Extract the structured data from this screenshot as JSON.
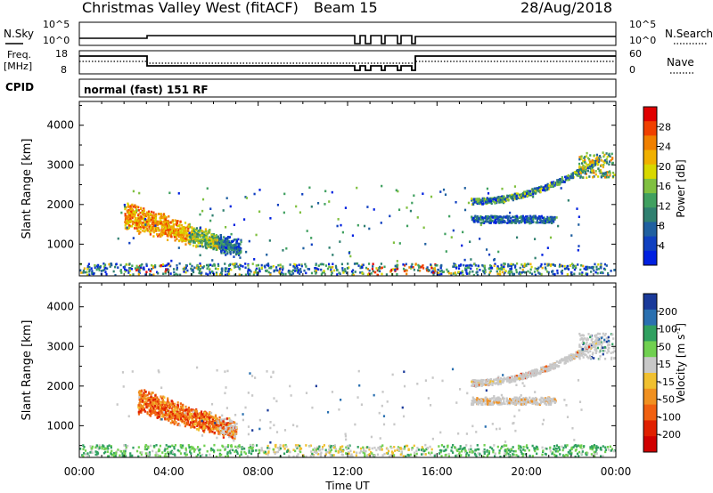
{
  "header": {
    "station": "Christmas Valley West (fitACF)",
    "beam": "Beam 15",
    "date": "28/Aug/2018"
  },
  "strip": {
    "nsky_label": "N.Sky",
    "nsky_ticks": [
      "10^5",
      "10^0"
    ],
    "nsearch_label": "N.Search",
    "nsearch_ticks": [
      "10^5",
      "10^0"
    ],
    "freq_label_1": "Freq.",
    "freq_label_2": "[MHz]",
    "freq_ticks": [
      "18",
      "8"
    ],
    "nave_label": "Nave",
    "nave_ticks": [
      "60",
      "0"
    ],
    "cpid_label": "CPID",
    "cpid_value": "normal (fast) 151 RF"
  },
  "axes": {
    "ylabel": "Slant Range [km]",
    "yticks": [
      "4000",
      "3000",
      "2000",
      "1000"
    ],
    "xlabel": "Time UT",
    "xticks": [
      "00:00",
      "04:00",
      "08:00",
      "12:00",
      "16:00",
      "20:00",
      "00:00"
    ]
  },
  "colorbars": {
    "power": {
      "label": "Power [dB]",
      "ticks": [
        "28",
        "24",
        "20",
        "16",
        "12",
        "8",
        "4"
      ],
      "colors": [
        "#e00000",
        "#f04000",
        "#f08000",
        "#f0b000",
        "#d8d800",
        "#80c040",
        "#40a060",
        "#308070",
        "#2060a0",
        "#1040c0",
        "#0020e0"
      ]
    },
    "velocity": {
      "label_pre": "Velocity [m s",
      "label_sup": "-1",
      "label_post": "]",
      "ticks": [
        "200",
        "100",
        "50",
        "15",
        "-15",
        "-50",
        "-100",
        "-200"
      ],
      "colors": [
        "#1a3a9a",
        "#2a70b0",
        "#30a060",
        "#70d050",
        "#c8c8c8",
        "#f0c030",
        "#f09020",
        "#f06010",
        "#e02000",
        "#d00000"
      ]
    }
  },
  "chart_data": [
    {
      "type": "heatmap",
      "title": "Power [dB]",
      "xlabel": "Time UT",
      "ylabel": "Slant Range [km]",
      "xlim": [
        0,
        24
      ],
      "ylim": [
        200,
        4600
      ],
      "colorbar_range": [
        0,
        30
      ],
      "features": [
        {
          "time_start": 1.8,
          "time_end": 7.3,
          "range_start": 800,
          "range_end": 1900,
          "power": 18
        },
        {
          "time_start": 0.0,
          "time_end": 24.0,
          "range_start": 200,
          "range_end": 500,
          "power": 10
        },
        {
          "time_start": 17.0,
          "time_end": 23.5,
          "range_start": 1500,
          "range_end": 3300,
          "power": 8
        }
      ]
    },
    {
      "type": "heatmap",
      "title": "Velocity [m s-1]",
      "xlabel": "Time UT",
      "ylabel": "Slant Range [km]",
      "xlim": [
        0,
        24
      ],
      "ylim": [
        200,
        4600
      ],
      "colorbar_range": [
        -200,
        200
      ],
      "features": [
        {
          "time_start": 2.5,
          "time_end": 7.0,
          "range_start": 800,
          "range_end": 1800,
          "velocity": -50
        },
        {
          "time_start": 0.0,
          "time_end": 24.0,
          "range_start": 200,
          "range_end": 500,
          "velocity": 30
        },
        {
          "time_start": 17.0,
          "time_end": 23.5,
          "range_start": 1500,
          "range_end": 3300,
          "velocity": 0
        }
      ]
    }
  ]
}
